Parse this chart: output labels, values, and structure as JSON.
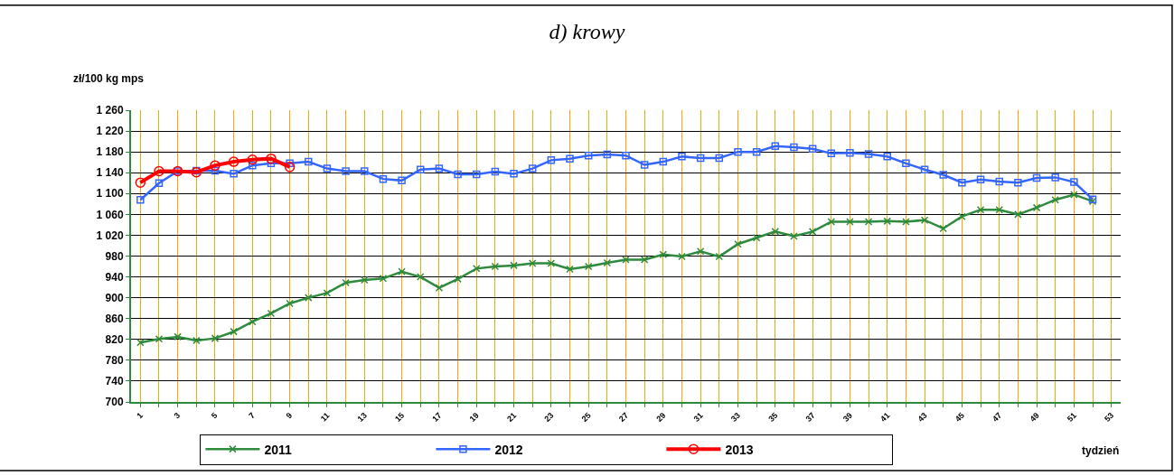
{
  "chart_data": {
    "type": "line",
    "title": "d) krowy",
    "ylabel": "zł/100 kg mps",
    "xlabel": "tydzień",
    "x": [
      1,
      2,
      3,
      4,
      5,
      6,
      7,
      8,
      9,
      10,
      11,
      12,
      13,
      14,
      15,
      16,
      17,
      18,
      19,
      20,
      21,
      22,
      23,
      24,
      25,
      26,
      27,
      28,
      29,
      30,
      31,
      32,
      33,
      34,
      35,
      36,
      37,
      38,
      39,
      40,
      41,
      42,
      43,
      44,
      45,
      46,
      47,
      48,
      49,
      50,
      51,
      52
    ],
    "series": [
      {
        "name": "2011",
        "color": "#2e8b3e",
        "marker": "cross",
        "values": [
          814,
          821,
          825,
          818,
          822,
          835,
          854,
          870,
          889,
          900,
          909,
          929,
          934,
          937,
          950,
          940,
          919,
          936,
          956,
          960,
          962,
          966,
          966,
          955,
          960,
          967,
          973,
          973,
          983,
          979,
          989,
          979,
          1003,
          1015,
          1027,
          1018,
          1027,
          1046,
          1046,
          1046,
          1047,
          1046,
          1049,
          1033,
          1056,
          1069,
          1069,
          1060,
          1073,
          1088,
          1098,
          1085
        ]
      },
      {
        "name": "2012",
        "color": "#3366ff",
        "marker": "square",
        "values": [
          1088,
          1120,
          1143,
          1144,
          1144,
          1138,
          1154,
          1158,
          1158,
          1161,
          1148,
          1143,
          1143,
          1128,
          1125,
          1146,
          1148,
          1137,
          1137,
          1142,
          1138,
          1148,
          1164,
          1167,
          1173,
          1175,
          1173,
          1155,
          1161,
          1171,
          1168,
          1168,
          1180,
          1180,
          1191,
          1189,
          1186,
          1177,
          1178,
          1176,
          1171,
          1158,
          1146,
          1136,
          1121,
          1127,
          1123,
          1121,
          1130,
          1131,
          1122,
          1089
        ]
      },
      {
        "name": "2013",
        "color": "#ff0000",
        "marker": "circle",
        "values": [
          1121,
          1143,
          1143,
          1141,
          1154,
          1161,
          1165,
          1167,
          1151,
          null,
          null,
          null,
          null,
          null,
          null,
          null,
          null,
          null,
          null,
          null,
          null,
          null,
          null,
          null,
          null,
          null,
          null,
          null,
          null,
          null,
          null,
          null,
          null,
          null,
          null,
          null,
          null,
          null,
          null,
          null,
          null,
          null,
          null,
          null,
          null,
          null,
          null,
          null,
          null,
          null,
          null,
          null
        ]
      }
    ],
    "xlim": [
      0.5,
      53.5
    ],
    "xticks": [
      1,
      {
        "value": 2,
        "label": null
      },
      3,
      {
        "value": 4,
        "label": null
      },
      5,
      {
        "value": 6,
        "label": null
      },
      7,
      {
        "value": 8,
        "label": null
      },
      9,
      {
        "value": 10,
        "label": null
      },
      11,
      {
        "value": 12,
        "label": null
      },
      13,
      {
        "value": 14,
        "label": null
      },
      15,
      {
        "value": 16,
        "label": null
      },
      17,
      {
        "value": 18,
        "label": null
      },
      19,
      {
        "value": 20,
        "label": null
      },
      21,
      {
        "value": 22,
        "label": null
      },
      23,
      {
        "value": 24,
        "label": null
      },
      25,
      {
        "value": 26,
        "label": null
      },
      27,
      {
        "value": 28,
        "label": null
      },
      29,
      {
        "value": 30,
        "label": null
      },
      31,
      {
        "value": 32,
        "label": null
      },
      33,
      {
        "value": 34,
        "label": null
      },
      35,
      {
        "value": 36,
        "label": null
      },
      37,
      {
        "value": 38,
        "label": null
      },
      39,
      {
        "value": 40,
        "label": null
      },
      41,
      {
        "value": 42,
        "label": null
      },
      43,
      {
        "value": 44,
        "label": null
      },
      45,
      {
        "value": 46,
        "label": null
      },
      47,
      {
        "value": 48,
        "label": null
      },
      49,
      {
        "value": 50,
        "label": null
      },
      51,
      {
        "value": 52,
        "label": null
      },
      53
    ],
    "ylim": [
      700,
      1260
    ],
    "yticks": [
      700,
      740,
      780,
      820,
      860,
      900,
      940,
      980,
      1020,
      1060,
      1100,
      1140,
      1180,
      1220,
      1260
    ],
    "grid": true,
    "legend": "bottom",
    "line_style": "solid"
  }
}
